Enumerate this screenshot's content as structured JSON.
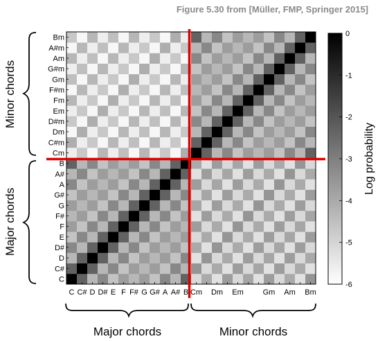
{
  "credit": "Figure 5.30 from [Müller, FMP, Springer 2015]",
  "chart_data": {
    "type": "heatmap",
    "title": "",
    "rows_bottom_to_top": [
      "C",
      "C#",
      "D",
      "D#",
      "E",
      "F",
      "F#",
      "G",
      "G#",
      "A",
      "A#",
      "B",
      "Cm",
      "C#m",
      "Dm",
      "D#m",
      "Em",
      "Fm",
      "F#m",
      "Gm",
      "G#m",
      "Am",
      "A#m",
      "Bm"
    ],
    "y_tick_labels": [
      "C",
      "C#",
      "D",
      "D#",
      "E",
      "F",
      "F#",
      "G",
      "G#",
      "A",
      "A#",
      "B",
      "Cm",
      "C#m",
      "Dm",
      "D#m",
      "Em",
      "Fm",
      "F#m",
      "Gm",
      "G#m",
      "Am",
      "A#m",
      "Bm"
    ],
    "x_tick_labels": [
      "C",
      "C#",
      "D",
      "D#",
      "E",
      "F",
      "F#",
      "G",
      "G#",
      "A",
      "A#",
      "B",
      "Cm",
      "",
      "Dm",
      "",
      "Em",
      "",
      "",
      "Gm",
      "",
      "Am",
      "",
      "Bm"
    ],
    "colorbar": {
      "label": "Log probability",
      "range": [
        -6,
        0
      ],
      "ticks": [
        0,
        -1,
        -2,
        -3,
        -4,
        -5,
        -6
      ],
      "colormap": "gray: 0 = black, -6 = white"
    },
    "pattern_values": {
      "diagonal": 0,
      "major_to_major_by_offset": [
        0,
        -2.3,
        -4.3,
        -3.2,
        -4.6,
        -3.7,
        -4.3,
        -3.7,
        -4.6,
        -3.2,
        -4.3,
        -2.3
      ],
      "minor_to_minor_by_offset": [
        0,
        -2.3,
        -4.3,
        -3.2,
        -4.6,
        -3.7,
        -4.3,
        -3.7,
        -4.6,
        -3.2,
        -4.3,
        -2.3
      ],
      "major_to_minor_by_offset": [
        -5.1,
        -4.0,
        -5.3,
        -3.7,
        -5.1,
        -3.9,
        -5.3,
        -3.7,
        -5.1,
        -4.0,
        -5.3,
        -3.5
      ],
      "minor_to_major_by_offset": [
        -5.6,
        -4.7,
        -5.8,
        -4.3,
        -5.6,
        -4.5,
        -5.8,
        -4.3,
        -5.6,
        -4.7,
        -5.8,
        -4.1
      ]
    },
    "block_separator_color": "#e00000",
    "side_labels": {
      "left_top": "Minor chords",
      "left_bottom": "Major chords",
      "bottom_left": "Major chords",
      "bottom_right": "Minor chords"
    }
  }
}
